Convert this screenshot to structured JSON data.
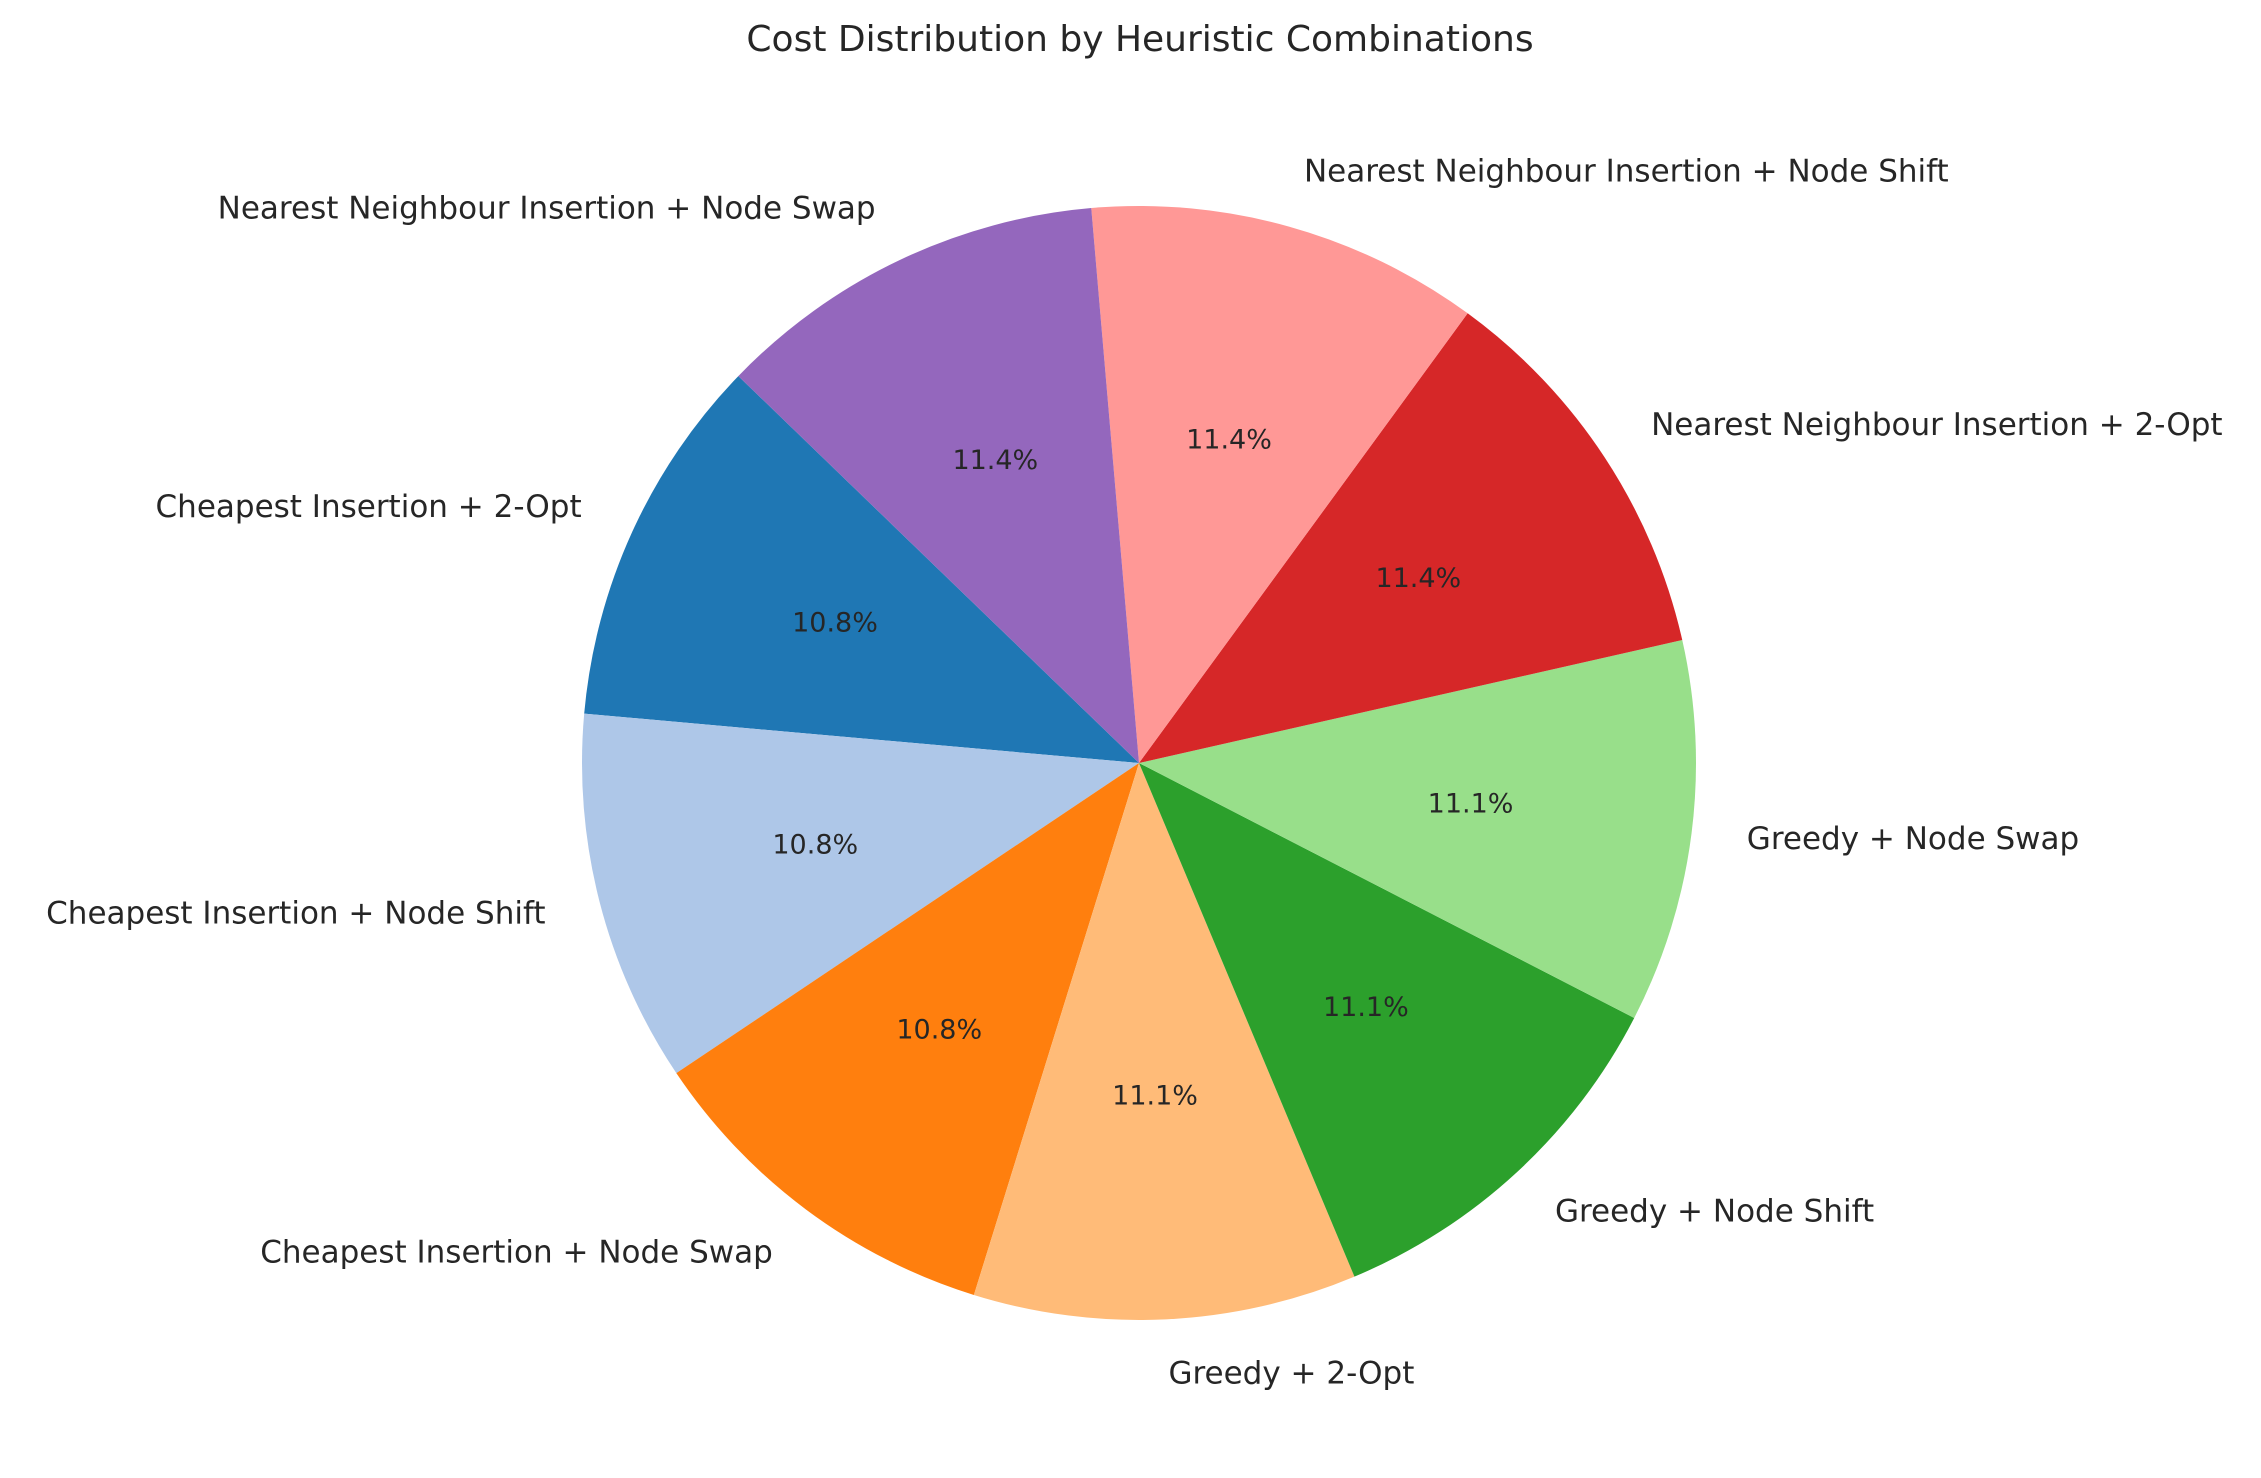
{
  "chart_data": {
    "type": "pie",
    "title": "Cost Distribution by Heuristic Combinations",
    "start_angle_deg": 136,
    "direction": "counterclockwise",
    "slices": [
      {
        "label": "Cheapest Insertion + 2-Opt",
        "value": 10.8,
        "pct_label": "10.8%",
        "color": "#1f77b4"
      },
      {
        "label": "Cheapest Insertion + Node Shift",
        "value": 10.8,
        "pct_label": "10.8%",
        "color": "#aec7e8"
      },
      {
        "label": "Cheapest Insertion + Node Swap",
        "value": 10.8,
        "pct_label": "10.8%",
        "color": "#ff7f0e"
      },
      {
        "label": "Greedy + 2-Opt",
        "value": 11.1,
        "pct_label": "11.1%",
        "color": "#ffbb78"
      },
      {
        "label": "Greedy + Node Shift",
        "value": 11.1,
        "pct_label": "11.1%",
        "color": "#2ca02c"
      },
      {
        "label": "Greedy + Node Swap",
        "value": 11.1,
        "pct_label": "11.1%",
        "color": "#98df8a"
      },
      {
        "label": "Nearest Neighbour Insertion + 2-Opt",
        "value": 11.4,
        "pct_label": "11.4%",
        "color": "#d62728"
      },
      {
        "label": "Nearest Neighbour Insertion + Node Shift",
        "value": 11.4,
        "pct_label": "11.4%",
        "color": "#ff9896"
      },
      {
        "label": "Nearest Neighbour Insertion + Node Swap",
        "value": 11.4,
        "pct_label": "11.4%",
        "color": "#9467bd"
      }
    ]
  }
}
